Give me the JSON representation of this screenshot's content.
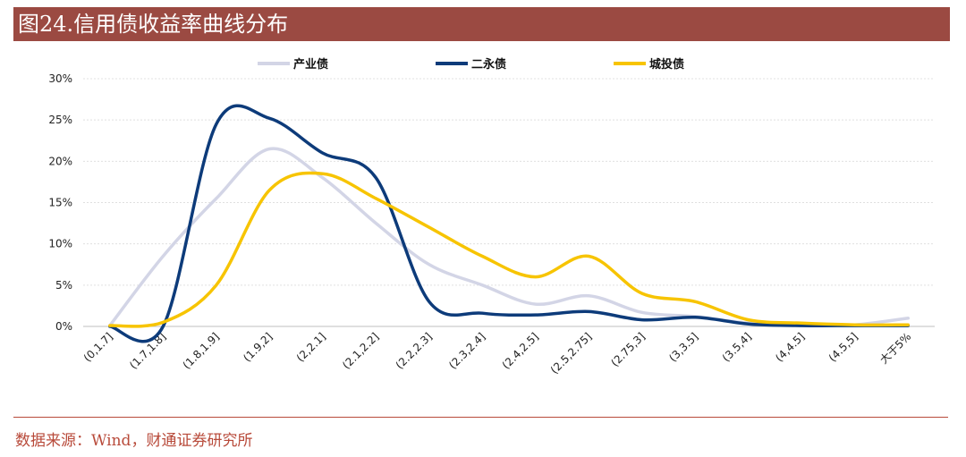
{
  "header": {
    "title": "图24.信用债收益率曲线分布"
  },
  "footer": {
    "source": "数据来源：Wind，财通证券研究所"
  },
  "colors": {
    "title_bg": "#9b4a42",
    "source_text": "#b84a3a",
    "grid": "#e0e0e0"
  },
  "chart_data": {
    "type": "line",
    "title": "",
    "xlabel": "",
    "ylabel": "",
    "categories": [
      "(0,1.7]",
      "(1.7,1.8]",
      "(1.8,1.9]",
      "(1.9,2]",
      "(2,2.1]",
      "(2.1,2.2]",
      "(2.2,2.3]",
      "(2.3,2.4]",
      "(2.4,2.5]",
      "(2.5,2.75]",
      "(2.75,3]",
      "(3,3.5]",
      "(3.5,4]",
      "(4,4.5]",
      "(4.5,5]",
      "大于5%"
    ],
    "ylim": [
      0,
      0.3
    ],
    "yticks": [
      0,
      0.05,
      0.1,
      0.15,
      0.2,
      0.25,
      0.3
    ],
    "ytick_labels": [
      "0%",
      "5%",
      "10%",
      "15%",
      "20%",
      "25%",
      "30%"
    ],
    "grid": true,
    "smooth": true,
    "legend": "top",
    "series": [
      {
        "name": "产业债",
        "color": "#d3d5e6",
        "values": [
          0.001,
          0.085,
          0.155,
          0.215,
          0.18,
          0.125,
          0.075,
          0.05,
          0.027,
          0.037,
          0.017,
          0.012,
          0.004,
          0.002,
          0.002,
          0.01
        ]
      },
      {
        "name": "二永债",
        "color": "#0d3b7a",
        "values": [
          0.0,
          0.0,
          0.245,
          0.252,
          0.21,
          0.18,
          0.03,
          0.016,
          0.014,
          0.018,
          0.008,
          0.011,
          0.003,
          0.001,
          0.001,
          0.001
        ]
      },
      {
        "name": "城投债",
        "color": "#f7c400",
        "values": [
          0.001,
          0.005,
          0.05,
          0.165,
          0.185,
          0.155,
          0.12,
          0.085,
          0.06,
          0.085,
          0.04,
          0.03,
          0.008,
          0.004,
          0.002,
          0.002
        ]
      }
    ]
  }
}
